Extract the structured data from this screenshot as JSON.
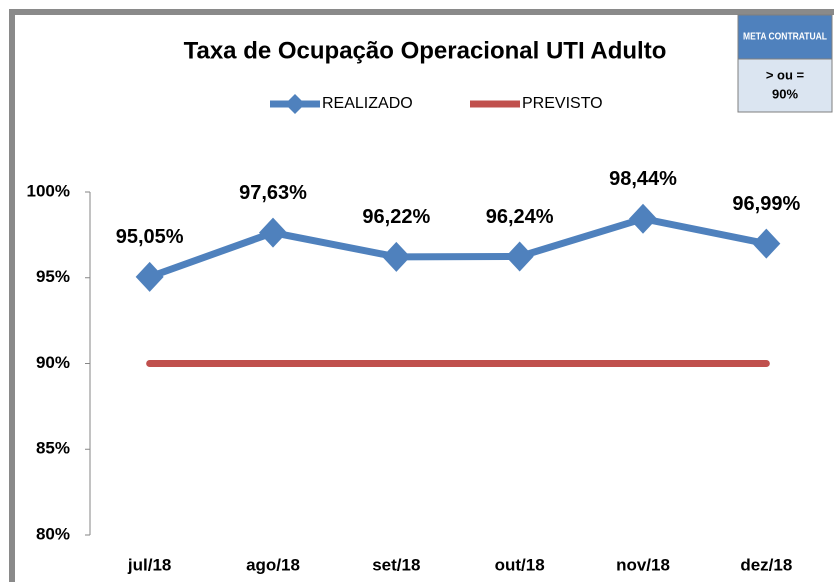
{
  "chart_data": {
    "type": "line",
    "title": "Taxa de Ocupação Operacional UTI Adulto",
    "categories": [
      "jul/18",
      "ago/18",
      "set/18",
      "out/18",
      "nov/18",
      "dez/18"
    ],
    "series": [
      {
        "name": "REALIZADO",
        "color": "#4f81bd",
        "values": [
          95.05,
          97.63,
          96.22,
          96.24,
          98.44,
          96.99
        ],
        "value_labels": [
          "95,05%",
          "97,63%",
          "96,22%",
          "96,24%",
          "98,44%",
          "96,99%"
        ]
      },
      {
        "name": "PREVISTO",
        "color": "#c0504d",
        "values": [
          90,
          90,
          90,
          90,
          90,
          90
        ]
      }
    ],
    "ylim": [
      80,
      100
    ],
    "yticks": [
      {
        "value": 80,
        "label": "80%"
      },
      {
        "value": 85,
        "label": "85%"
      },
      {
        "value": 90,
        "label": "90%"
      },
      {
        "value": 95,
        "label": "95%"
      },
      {
        "value": 100,
        "label": "100%"
      }
    ],
    "grid": false,
    "legend": "top"
  },
  "meta_box": {
    "header": "META CONTRATUAL",
    "lines": [
      "> ou =",
      "90%"
    ]
  }
}
